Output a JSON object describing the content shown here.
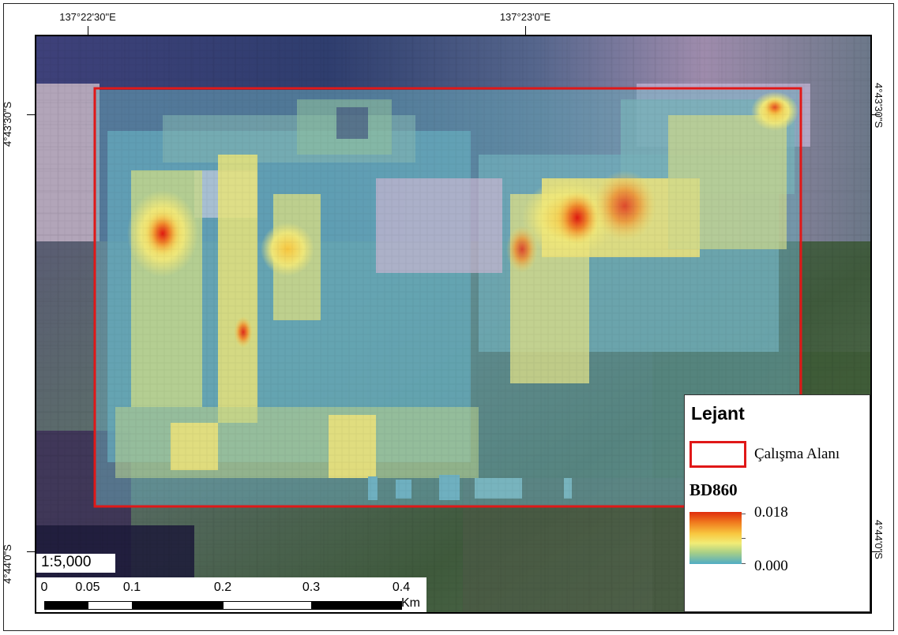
{
  "map": {
    "top_labels": [
      "137°22'30\"E",
      "137°23'0\"E"
    ],
    "left_labels": [
      "4°43'30\"S",
      "4°44'0\"S"
    ],
    "right_labels": [
      "4°43'30\"S",
      "4°44'0\"S"
    ],
    "scale_text": "1:5,000",
    "scale_ticks": [
      "0",
      "0.05",
      "0.1",
      "0.2",
      "0.3",
      "0.4"
    ],
    "scale_unit": "Km",
    "boundary_color": "#e01818",
    "basemap": "low-resolution satellite imagery (blue/purple/pink tones north, green/olive tones south)",
    "raster_overlay": "BD860 gradient from blue (low) through yellow to red (high), clipped to study area"
  },
  "legend": {
    "title": "Lejant",
    "aoi_label": "Çalışma Alanı",
    "layer_name": "BD860",
    "max_value": "0.018",
    "min_value": "0.000",
    "ramp_colors": [
      "#e02c0c",
      "#f07a1e",
      "#f8c840",
      "#f2ec76",
      "#a8cf86",
      "#50acc4"
    ]
  }
}
